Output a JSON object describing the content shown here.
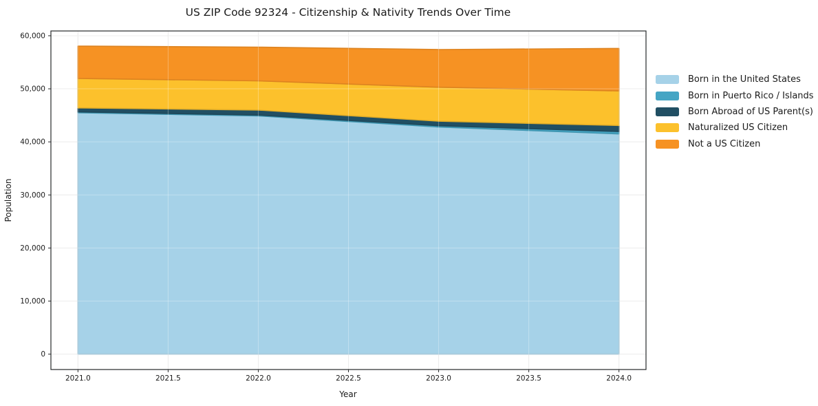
{
  "chart_data": {
    "type": "area",
    "stacked": true,
    "title": "US ZIP Code 92324 - Citizenship & Nativity Trends Over Time",
    "xlabel": "Year",
    "ylabel": "Population",
    "x": [
      2021,
      2022,
      2023,
      2024
    ],
    "series": [
      {
        "name": "Born in the United States",
        "color": "#a6d2e8",
        "values": [
          45500,
          44900,
          42800,
          41500
        ]
      },
      {
        "name": "Born in Puerto Rico / Islands",
        "color": "#45a5c4",
        "values": [
          150,
          150,
          250,
          450
        ]
      },
      {
        "name": "Born Abroad of US Parent(s)",
        "color": "#214f63",
        "values": [
          750,
          950,
          850,
          1150
        ]
      },
      {
        "name": "Naturalized US Citizen",
        "color": "#fcc12c",
        "values": [
          5550,
          5500,
          6400,
          6500
        ]
      },
      {
        "name": "Not a US Citizen",
        "color": "#f69223",
        "values": [
          6100,
          6350,
          7100,
          8000
        ]
      }
    ],
    "totals": [
      58050,
      57850,
      57400,
      57600
    ],
    "xlim": [
      2020.85,
      2024.15
    ],
    "ylim": [
      -2900,
      60900
    ],
    "xticks": [
      2021.0,
      2021.5,
      2022.0,
      2022.5,
      2023.0,
      2023.5,
      2024.0
    ],
    "yticks": [
      0,
      10000,
      20000,
      30000,
      40000,
      50000,
      60000
    ],
    "grid": true,
    "legend_position": "right"
  }
}
